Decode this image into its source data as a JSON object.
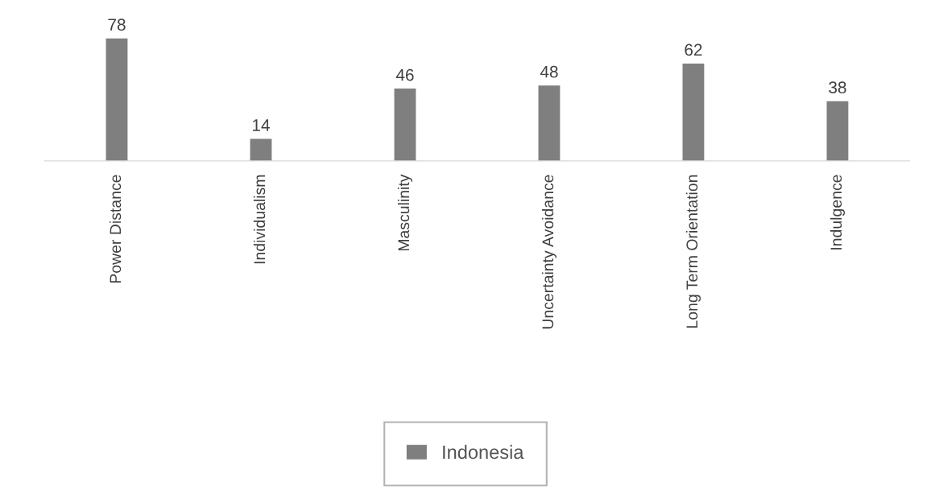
{
  "chart_data": {
    "type": "bar",
    "categories": [
      "Power Distance",
      "Individualism",
      "Masculinity",
      "Uncertainty Avoidance",
      "Long Term Orientation",
      "Indulgence"
    ],
    "series": [
      {
        "name": "Indonesia",
        "color": "#7f7f7f",
        "values": [
          78,
          14,
          46,
          48,
          62,
          38
        ]
      }
    ],
    "data_labels": true,
    "legend": "bottom",
    "grid": false
  }
}
